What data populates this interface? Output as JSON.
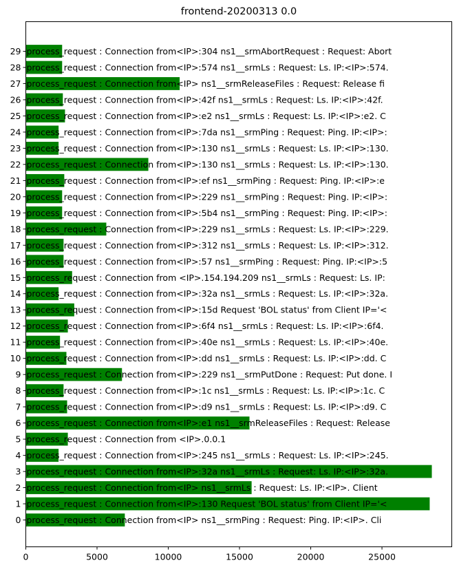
{
  "chart_data": {
    "type": "bar",
    "orientation": "horizontal",
    "title": "frontend-20200313 0.0",
    "xlabel": "",
    "ylabel": "",
    "xlim": [
      0,
      29900
    ],
    "xticks": [
      0,
      5000,
      10000,
      15000,
      20000,
      25000
    ],
    "grid": false,
    "bar_color": "#008000",
    "categories": [
      "0",
      "1",
      "2",
      "3",
      "4",
      "5",
      "6",
      "7",
      "8",
      "9",
      "10",
      "11",
      "12",
      "13",
      "14",
      "15",
      "16",
      "17",
      "18",
      "19",
      "20",
      "21",
      "22",
      "23",
      "24",
      "25",
      "26",
      "27",
      "28",
      "29"
    ],
    "values": [
      6950,
      28350,
      15850,
      28500,
      2300,
      2950,
      15700,
      2900,
      2650,
      6750,
      2850,
      2400,
      2950,
      3400,
      2300,
      3250,
      2650,
      2650,
      5650,
      2550,
      2550,
      2700,
      8600,
      2300,
      2300,
      2750,
      2600,
      10800,
      2550,
      2550
    ],
    "labels": [
      "process_request : Connection from<IP> ns1__srmPing : Request: Ping. IP:<IP>. Cli",
      "process_request : Connection from<IP>:130 Request 'BOL status' from Client IP='<",
      "process_request : Connection from<IP> ns1__srmLs : Request: Ls. IP:<IP>. Client",
      "process_request : Connection from<IP>:32a ns1__srmLs : Request: Ls. IP:<IP>:32a.",
      "process_request : Connection from<IP>:245 ns1__srmLs : Request: Ls. IP:<IP>:245.",
      "process_request : Connection from <IP>.0.0.1",
      "process_request : Connection from<IP>:e1 ns1__srmReleaseFiles : Request: Release",
      "process_request : Connection from<IP>:d9 ns1__srmLs : Request: Ls. IP:<IP>:d9. C",
      "process_request : Connection from<IP>:1c ns1__srmLs : Request: Ls. IP:<IP>:1c. C",
      "process_request : Connection from<IP>:229 ns1__srmPutDone : Request: Put done. I",
      "process_request : Connection from<IP>:dd ns1__srmLs : Request: Ls. IP:<IP>:dd. C",
      "process_request : Connection from<IP>:40e ns1__srmLs : Request: Ls. IP:<IP>:40e.",
      "process_request : Connection from<IP>:6f4 ns1__srmLs : Request: Ls. IP:<IP>:6f4.",
      "process_request : Connection from<IP>:15d Request 'BOL status' from Client IP='<",
      "process_request : Connection from<IP>:32a ns1__srmLs : Request: Ls. IP:<IP>:32a.",
      "process_request : Connection from <IP>.154.194.209 ns1__srmLs : Request: Ls. IP:",
      "process_request : Connection from<IP>:57 ns1__srmPing : Request: Ping. IP:<IP>:5",
      "process_request : Connection from<IP>:312 ns1__srmLs : Request: Ls. IP:<IP>:312.",
      "process_request : Connection from<IP>:229 ns1__srmLs : Request: Ls. IP:<IP>:229.",
      "process_request : Connection from<IP>:5b4 ns1__srmPing : Request: Ping. IP:<IP>:",
      "process_request : Connection from<IP>:229 ns1__srmPing : Request: Ping. IP:<IP>:",
      "process_request : Connection from<IP>:ef ns1__srmPing : Request: Ping. IP:<IP>:e",
      "process_request : Connection from<IP>:130 ns1__srmLs : Request: Ls. IP:<IP>:130.",
      "process_request : Connection from<IP>:130 ns1__srmLs : Request: Ls. IP:<IP>:130.",
      "process_request : Connection from<IP>:7da ns1__srmPing : Request: Ping. IP:<IP>:",
      "process_request : Connection from<IP>:e2 ns1__srmLs : Request: Ls. IP:<IP>:e2. C",
      "process_request : Connection from<IP>:42f ns1__srmLs : Request: Ls. IP:<IP>:42f.",
      "process_request : Connection from<IP> ns1__srmReleaseFiles : Request: Release fi",
      "process_request : Connection from<IP>:574 ns1__srmLs : Request: Ls. IP:<IP>:574.",
      "process_request : Connection from<IP>:304 ns1__srmAbortRequest : Request: Abort"
    ]
  }
}
